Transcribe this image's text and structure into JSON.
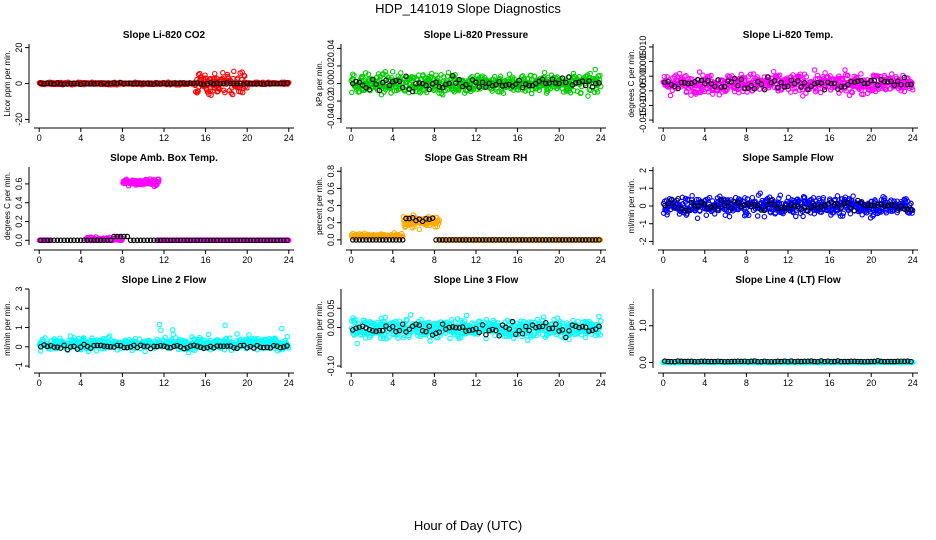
{
  "figure": {
    "title": "HDP_141019  Slope Diagnostics",
    "xlabel": "Hour of Day (UTC)",
    "colors": {
      "black": "#000000"
    }
  },
  "chart_data": [
    {
      "type": "scatter",
      "title": "Slope Li-820 CO2",
      "ylabel": "Licor ppm per min.",
      "color": "#ff0000",
      "xlim": [
        -0.5,
        24.5
      ],
      "ylim": [
        -22,
        22
      ],
      "xticks": [
        0,
        4,
        8,
        12,
        16,
        20,
        24
      ],
      "yticks": [
        -20,
        0,
        20
      ],
      "ytick_labels": [
        "-20",
        "0",
        "20"
      ],
      "pattern": "co2"
    },
    {
      "type": "scatter",
      "title": "Slope Li-820 Pressure",
      "ylabel": "kPa per min.",
      "color": "#00cc00",
      "xlim": [
        -0.5,
        24.5
      ],
      "ylim": [
        -0.045,
        0.045
      ],
      "xticks": [
        0,
        4,
        8,
        12,
        16,
        20,
        24
      ],
      "yticks": [
        -0.04,
        -0.02,
        0,
        0.02,
        0.04
      ],
      "ytick_labels": [
        "-0.04",
        "-0.02",
        "0.00",
        "0.02",
        "0.04"
      ],
      "pattern": "noise"
    },
    {
      "type": "scatter",
      "title": "Slope Li-820 Temp.",
      "ylabel": "degrees C per min.",
      "color": "#ff00ff",
      "xlim": [
        -0.5,
        24.5
      ],
      "ylim": [
        -0.016,
        0.011
      ],
      "xticks": [
        0,
        4,
        8,
        12,
        16,
        20,
        24
      ],
      "yticks": [
        -0.015,
        -0.01,
        -0.005,
        0,
        0.005,
        0.01
      ],
      "ytick_labels": [
        "-0.015",
        "-0.010",
        "-0.005",
        "0.000",
        "0.005",
        "0.010"
      ],
      "pattern": "noise"
    },
    {
      "type": "scatter",
      "title": "Slope Amb. Box Temp.",
      "ylabel": "degrees C per min.",
      "color": "#ff00ff",
      "xlim": [
        -0.5,
        24.5
      ],
      "ylim": [
        -0.05,
        0.78
      ],
      "xticks": [
        0,
        4,
        8,
        12,
        16,
        20,
        24
      ],
      "yticks": [
        0,
        0.2,
        0.4,
        0.6
      ],
      "ytick_labels": [
        "0.0",
        "0.2",
        "0.4",
        "0.6"
      ],
      "pattern": "amb"
    },
    {
      "type": "scatter",
      "title": "Slope Gas Stream RH",
      "ylabel": "percent per min.",
      "color": "#ffaa00",
      "xlim": [
        -0.5,
        24.5
      ],
      "ylim": [
        -0.06,
        0.85
      ],
      "xticks": [
        0,
        4,
        8,
        12,
        16,
        20,
        24
      ],
      "yticks": [
        0,
        0.2,
        0.4,
        0.6,
        0.8
      ],
      "ytick_labels": [
        "0.0",
        "0.2",
        "0.4",
        "0.6",
        "0.8"
      ],
      "pattern": "rh"
    },
    {
      "type": "scatter",
      "title": "Slope Sample Flow",
      "ylabel": "ml/min per min.",
      "color": "#0000ff",
      "xlim": [
        -0.5,
        24.5
      ],
      "ylim": [
        -2.2,
        2.2
      ],
      "xticks": [
        0,
        4,
        8,
        12,
        16,
        20,
        24
      ],
      "yticks": [
        -2,
        -1,
        0,
        1,
        2
      ],
      "ytick_labels": [
        "-2",
        "-1",
        "0",
        "1",
        "2"
      ],
      "pattern": "noise"
    },
    {
      "type": "scatter",
      "title": "Slope Line 2 Flow",
      "ylabel": "ml/min per min.",
      "color": "#00ffff",
      "xlim": [
        -0.5,
        24.5
      ],
      "ylim": [
        -1.1,
        3.0
      ],
      "xticks": [
        0,
        4,
        8,
        12,
        16,
        20,
        24
      ],
      "yticks": [
        -1,
        0,
        1,
        2,
        3
      ],
      "ytick_labels": [
        "-1",
        "0",
        "1",
        "2",
        "3"
      ],
      "pattern": "line2"
    },
    {
      "type": "scatter",
      "title": "Slope Line 3 Flow",
      "ylabel": "ml/min per min.",
      "color": "#00ffff",
      "xlim": [
        -0.5,
        24.5
      ],
      "ylim": [
        -0.105,
        0.1
      ],
      "xticks": [
        0,
        4,
        8,
        12,
        16,
        20,
        24
      ],
      "yticks": [
        -0.1,
        0,
        0.05
      ],
      "ytick_labels": [
        "-0.10",
        "0.00",
        "0.05"
      ],
      "pattern": "noise"
    },
    {
      "type": "scatter",
      "title": "Slope Line 4 (LT) Flow",
      "ylabel": "ml/min per min.",
      "color": "#00ffff",
      "xlim": [
        -0.5,
        24.5
      ],
      "ylim": [
        -0.15,
        2.0
      ],
      "xticks": [
        0,
        4,
        8,
        12,
        16,
        20,
        24
      ],
      "yticks": [
        0,
        1
      ],
      "ytick_labels": [
        "0.0",
        "1.0"
      ],
      "pattern": "line4"
    }
  ]
}
